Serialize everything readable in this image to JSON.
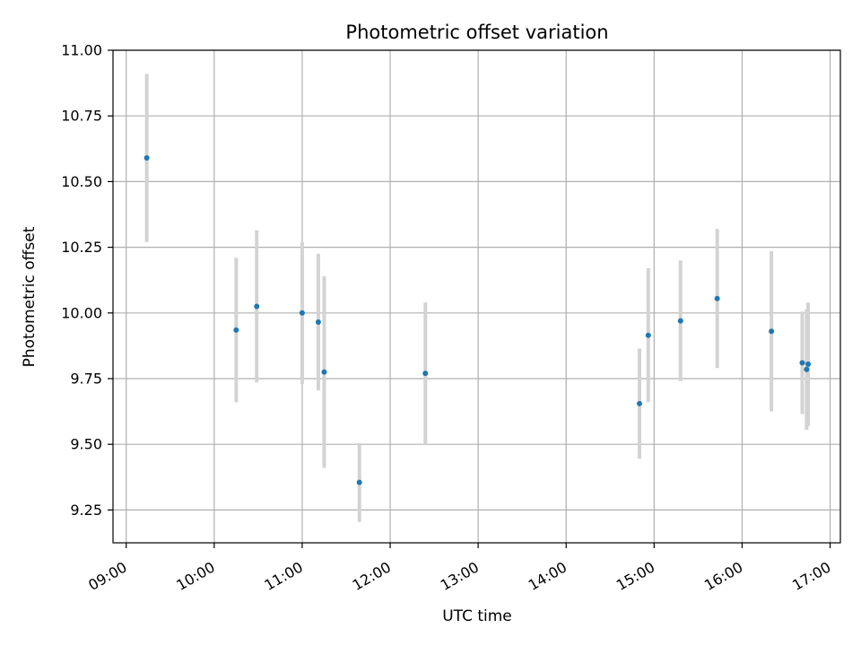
{
  "chart_data": {
    "type": "scatter",
    "title": "Photometric offset variation",
    "xlabel": "UTC time",
    "ylabel": "Photometric offset",
    "x_axis_type": "time",
    "xlim": [
      "08:51",
      "17:07"
    ],
    "ylim": [
      9.125,
      11.0
    ],
    "grid": true,
    "legend": "none",
    "x_ticks": [
      "09:00",
      "10:00",
      "11:00",
      "12:00",
      "13:00",
      "14:00",
      "15:00",
      "16:00",
      "17:00"
    ],
    "y_ticks": [
      "9.25",
      "9.50",
      "9.75",
      "10.00",
      "10.25",
      "10.50",
      "10.75",
      "11.00"
    ],
    "series": [
      {
        "marker_color": "#1f77b4",
        "errorbar_color": "#d3d3d3",
        "points": [
          {
            "x": "09:14",
            "y": 10.59,
            "yerr": 0.32
          },
          {
            "x": "10:15",
            "y": 9.935,
            "yerr": 0.275
          },
          {
            "x": "10:29",
            "y": 10.025,
            "yerr": 0.29
          },
          {
            "x": "11:00",
            "y": 10.0,
            "yerr": 0.27
          },
          {
            "x": "11:11",
            "y": 9.965,
            "yerr": 0.26
          },
          {
            "x": "11:15",
            "y": 9.775,
            "yerr": 0.365
          },
          {
            "x": "11:39",
            "y": 9.355,
            "yerr": 0.15
          },
          {
            "x": "12:24",
            "y": 9.77,
            "yerr": 0.27
          },
          {
            "x": "14:50",
            "y": 9.655,
            "yerr": 0.21
          },
          {
            "x": "14:56",
            "y": 9.915,
            "yerr": 0.255
          },
          {
            "x": "15:18",
            "y": 9.97,
            "yerr": 0.23
          },
          {
            "x": "15:43",
            "y": 10.055,
            "yerr": 0.265
          },
          {
            "x": "16:20",
            "y": 9.93,
            "yerr": 0.305
          },
          {
            "x": "16:41",
            "y": 9.81,
            "yerr": 0.195
          },
          {
            "x": "16:44",
            "y": 9.785,
            "yerr": 0.23
          },
          {
            "x": "16:45",
            "y": 9.805,
            "yerr": 0.235
          }
        ]
      }
    ]
  }
}
